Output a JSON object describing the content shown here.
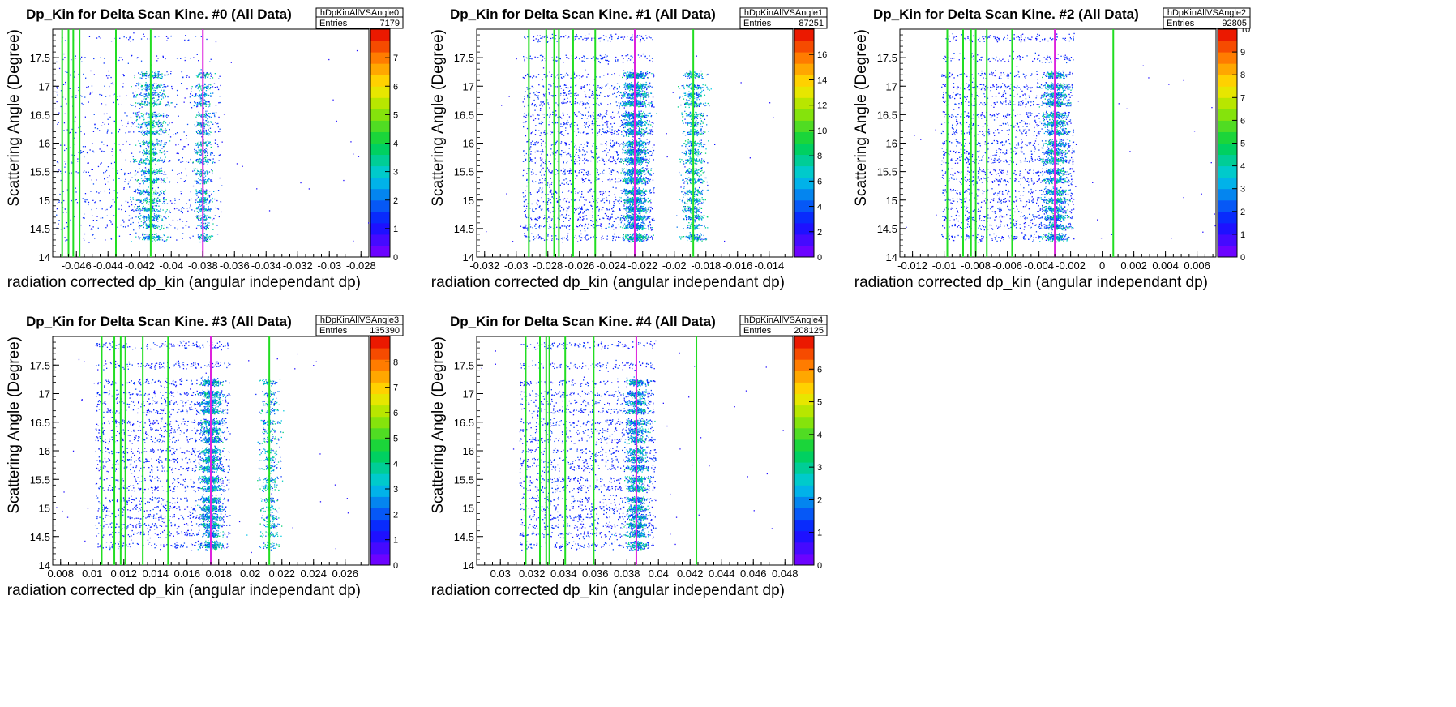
{
  "chart_data": [
    {
      "type": "heatmap",
      "title": "Dp_Kin for Delta Scan Kine. #0 (All Data)",
      "xlabel": "radiation corrected dp_kin (angular independant dp)",
      "ylabel": "Scattering Angle (Degree)",
      "xlim": [
        -0.0475,
        -0.0275
      ],
      "ylim": [
        14,
        18
      ],
      "x_ticks": [
        "-0.046",
        "-0.044",
        "-0.042",
        "-0.04",
        "-0.038",
        "-0.036",
        "-0.034",
        "-0.032",
        "-0.03",
        "-0.028"
      ],
      "x_tick_values": [
        -0.046,
        -0.044,
        -0.042,
        -0.04,
        -0.038,
        -0.036,
        -0.034,
        -0.032,
        -0.03,
        -0.028
      ],
      "y_ticks": [
        "14",
        "14.5",
        "15",
        "15.5",
        "16",
        "16.5",
        "17",
        "17.5"
      ],
      "y_tick_values": [
        14,
        14.5,
        15,
        15.5,
        16,
        16.5,
        17,
        17.5
      ],
      "z_range": [
        0,
        8
      ],
      "z_ticks": [
        "0",
        "1",
        "2",
        "3",
        "4",
        "5",
        "6",
        "7"
      ],
      "z_tick_values": [
        0,
        1,
        2,
        3,
        4,
        5,
        6,
        7
      ],
      "stats": {
        "name": "hDpKinAllVSAngle0",
        "entries_label": "Entries",
        "entries": "7179"
      },
      "green_lines": [
        -0.0469,
        -0.0465,
        -0.0462,
        -0.0458,
        -0.0435,
        -0.0413
      ],
      "magenta_line": -0.038,
      "clusters": [
        {
          "x": -0.0413,
          "w": 0.0009,
          "n": 1500
        },
        {
          "x": -0.038,
          "w": 0.0005,
          "n": 900
        }
      ],
      "bands": [
        14.35,
        14.55,
        14.7,
        14.85,
        15.0,
        15.15,
        15.35,
        15.5,
        15.7,
        15.85,
        16.0,
        16.2,
        16.35,
        16.5,
        16.7,
        16.85,
        17.0,
        17.2,
        17.5,
        17.85
      ]
    },
    {
      "type": "heatmap",
      "title": "Dp_Kin for Delta Scan Kine. #1 (All Data)",
      "xlabel": "radiation corrected dp_kin (angular independant dp)",
      "ylabel": "Scattering Angle (Degree)",
      "xlim": [
        -0.0325,
        -0.0125
      ],
      "ylim": [
        14,
        18
      ],
      "x_ticks": [
        "-0.032",
        "-0.03",
        "-0.028",
        "-0.026",
        "-0.024",
        "-0.022",
        "-0.02",
        "-0.018",
        "-0.016",
        "-0.014"
      ],
      "x_tick_values": [
        -0.032,
        -0.03,
        -0.028,
        -0.026,
        -0.024,
        -0.022,
        -0.02,
        -0.018,
        -0.016,
        -0.014
      ],
      "y_ticks": [
        "14",
        "14.5",
        "15",
        "15.5",
        "16",
        "16.5",
        "17",
        "17.5"
      ],
      "y_tick_values": [
        14,
        14.5,
        15,
        15.5,
        16,
        16.5,
        17,
        17.5
      ],
      "z_range": [
        0,
        18
      ],
      "z_ticks": [
        "0",
        "2",
        "4",
        "6",
        "8",
        "10",
        "12",
        "14",
        "16"
      ],
      "z_tick_values": [
        0,
        2,
        4,
        6,
        8,
        10,
        12,
        14,
        16
      ],
      "stats": {
        "name": "hDpKinAllVSAngle1",
        "entries_label": "Entries",
        "entries": "87251"
      },
      "green_lines": [
        -0.0292,
        -0.0281,
        -0.0276,
        -0.0273,
        -0.0264,
        -0.025,
        -0.0188
      ],
      "magenta_line": -0.0225,
      "clusters": [
        {
          "x": -0.0225,
          "w": 0.0007,
          "n": 3500
        },
        {
          "x": -0.0188,
          "w": 0.0007,
          "n": 1400
        }
      ],
      "bands": [
        14.35,
        14.55,
        14.7,
        14.85,
        15.0,
        15.15,
        15.35,
        15.5,
        15.7,
        15.85,
        16.0,
        16.2,
        16.35,
        16.5,
        16.7,
        16.85,
        17.0,
        17.2,
        17.5,
        17.85
      ]
    },
    {
      "type": "heatmap",
      "title": "Dp_Kin for Delta Scan Kine. #2 (All Data)",
      "xlabel": "radiation corrected dp_kin (angular independant dp)",
      "ylabel": "Scattering Angle (Degree)",
      "xlim": [
        -0.0128,
        0.0072
      ],
      "ylim": [
        14,
        18
      ],
      "x_ticks": [
        "-0.012",
        "-0.01",
        "-0.008",
        "-0.006",
        "-0.004",
        "-0.002",
        "0",
        "0.002",
        "0.004",
        "0.006"
      ],
      "x_tick_values": [
        -0.012,
        -0.01,
        -0.008,
        -0.006,
        -0.004,
        -0.002,
        0,
        0.002,
        0.004,
        0.006
      ],
      "y_ticks": [
        "14",
        "14.5",
        "15",
        "15.5",
        "16",
        "16.5",
        "17",
        "17.5"
      ],
      "y_tick_values": [
        14,
        14.5,
        15,
        15.5,
        16,
        16.5,
        17,
        17.5
      ],
      "z_range": [
        0,
        10
      ],
      "z_ticks": [
        "0",
        "1",
        "2",
        "3",
        "4",
        "5",
        "6",
        "7",
        "8",
        "9",
        "10"
      ],
      "z_tick_values": [
        0,
        1,
        2,
        3,
        4,
        5,
        6,
        7,
        8,
        9,
        10
      ],
      "stats": {
        "name": "hDpKinAllVSAngle2",
        "entries_label": "Entries",
        "entries": "92805"
      },
      "green_lines": [
        -0.0098,
        -0.0088,
        -0.0083,
        -0.008,
        -0.0073,
        -0.0057,
        0.0007
      ],
      "magenta_line": -0.003,
      "clusters": [
        {
          "x": -0.003,
          "w": 0.0007,
          "n": 2500
        }
      ],
      "bands": [
        14.35,
        14.55,
        14.7,
        14.85,
        15.0,
        15.15,
        15.35,
        15.5,
        15.7,
        15.85,
        16.0,
        16.2,
        16.35,
        16.5,
        16.7,
        16.85,
        17.0,
        17.2,
        17.5,
        17.85
      ]
    },
    {
      "type": "heatmap",
      "title": "Dp_Kin for Delta Scan Kine. #3 (All Data)",
      "xlabel": "radiation corrected dp_kin (angular independant dp)",
      "ylabel": "Scattering Angle (Degree)",
      "xlim": [
        0.0075,
        0.0275
      ],
      "ylim": [
        14,
        18
      ],
      "x_ticks": [
        "0.008",
        "0.01",
        "0.012",
        "0.014",
        "0.016",
        "0.018",
        "0.02",
        "0.022",
        "0.024",
        "0.026"
      ],
      "x_tick_values": [
        0.008,
        0.01,
        0.012,
        0.014,
        0.016,
        0.018,
        0.02,
        0.022,
        0.024,
        0.026
      ],
      "y_ticks": [
        "14",
        "14.5",
        "15",
        "15.5",
        "16",
        "16.5",
        "17",
        "17.5"
      ],
      "y_tick_values": [
        14,
        14.5,
        15,
        15.5,
        16,
        16.5,
        17,
        17.5
      ],
      "z_range": [
        0,
        9
      ],
      "z_ticks": [
        "0",
        "1",
        "2",
        "3",
        "4",
        "5",
        "6",
        "7",
        "8"
      ],
      "z_tick_values": [
        0,
        1,
        2,
        3,
        4,
        5,
        6,
        7,
        8
      ],
      "stats": {
        "name": "hDpKinAllVSAngle3",
        "entries_label": "Entries",
        "entries": "135390"
      },
      "green_lines": [
        0.0106,
        0.0114,
        0.0118,
        0.0121,
        0.0132,
        0.0148,
        0.0212
      ],
      "magenta_line": 0.0175,
      "clusters": [
        {
          "x": 0.0175,
          "w": 0.0006,
          "n": 2800
        },
        {
          "x": 0.0212,
          "w": 0.0006,
          "n": 700
        }
      ],
      "bands": [
        14.35,
        14.55,
        14.7,
        14.85,
        15.0,
        15.15,
        15.35,
        15.5,
        15.7,
        15.85,
        16.0,
        16.2,
        16.35,
        16.5,
        16.7,
        16.85,
        17.0,
        17.2,
        17.5,
        17.85
      ]
    },
    {
      "type": "heatmap",
      "title": "Dp_Kin for Delta Scan Kine. #4 (All Data)",
      "xlabel": "radiation corrected dp_kin (angular independant dp)",
      "ylabel": "Scattering Angle (Degree)",
      "xlim": [
        0.0285,
        0.0485
      ],
      "ylim": [
        14,
        18
      ],
      "x_ticks": [
        "0.03",
        "0.032",
        "0.034",
        "0.036",
        "0.038",
        "0.04",
        "0.042",
        "0.044",
        "0.046",
        "0.048"
      ],
      "x_tick_values": [
        0.03,
        0.032,
        0.034,
        0.036,
        0.038,
        0.04,
        0.042,
        0.044,
        0.046,
        0.048
      ],
      "y_ticks": [
        "14",
        "14.5",
        "15",
        "15.5",
        "16",
        "16.5",
        "17",
        "17.5"
      ],
      "y_tick_values": [
        14,
        14.5,
        15,
        15.5,
        16,
        16.5,
        17,
        17.5
      ],
      "z_range": [
        0,
        7
      ],
      "z_ticks": [
        "0",
        "1",
        "2",
        "3",
        "4",
        "5",
        "6"
      ],
      "z_tick_values": [
        0,
        1,
        2,
        3,
        4,
        5,
        6
      ],
      "stats": {
        "name": "hDpKinAllVSAngle4",
        "entries_label": "Entries",
        "entries": "208125"
      },
      "green_lines": [
        0.0316,
        0.0325,
        0.0329,
        0.0331,
        0.0341,
        0.0359,
        0.0424
      ],
      "magenta_line": 0.0386,
      "clusters": [
        {
          "x": 0.0386,
          "w": 0.0006,
          "n": 2200
        }
      ],
      "bands": [
        14.35,
        14.55,
        14.7,
        14.85,
        15.0,
        15.15,
        15.35,
        15.5,
        15.7,
        15.85,
        16.0,
        16.2,
        16.35,
        16.5,
        16.7,
        16.85,
        17.0,
        17.2,
        17.5,
        17.85
      ]
    }
  ]
}
